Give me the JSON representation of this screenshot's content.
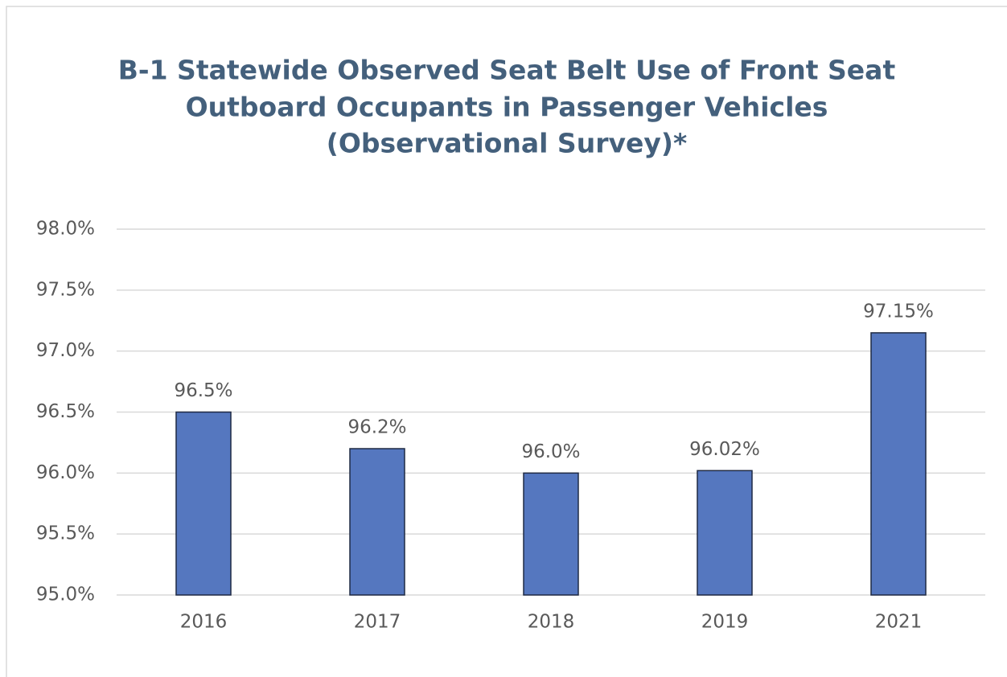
{
  "chart_data": {
    "type": "bar",
    "title": [
      "B-1 Statewide Observed Seat Belt Use of Front Seat",
      "Outboard Occupants in Passenger Vehicles",
      "(Observational Survey)*"
    ],
    "categories": [
      "2016",
      "2017",
      "2018",
      "2019",
      "2021"
    ],
    "values": [
      96.5,
      96.2,
      96.0,
      96.02,
      97.15
    ],
    "value_labels": [
      "96.5%",
      "96.2%",
      "96.0%",
      "96.02%",
      "97.15%"
    ],
    "color": "#5577bf",
    "ylim": [
      95,
      98
    ],
    "yticks": [
      {
        "value": 95,
        "label": "95.0%"
      },
      {
        "value": 95.5,
        "label": "95.5%"
      },
      {
        "value": 96,
        "label": "96.0%"
      },
      {
        "value": 96.5,
        "label": "96.5%"
      },
      {
        "value": 97,
        "label": "97.0%"
      },
      {
        "value": 97.5,
        "label": "97.5%"
      },
      {
        "value": 98,
        "label": "98.0%"
      }
    ],
    "grid": true
  }
}
